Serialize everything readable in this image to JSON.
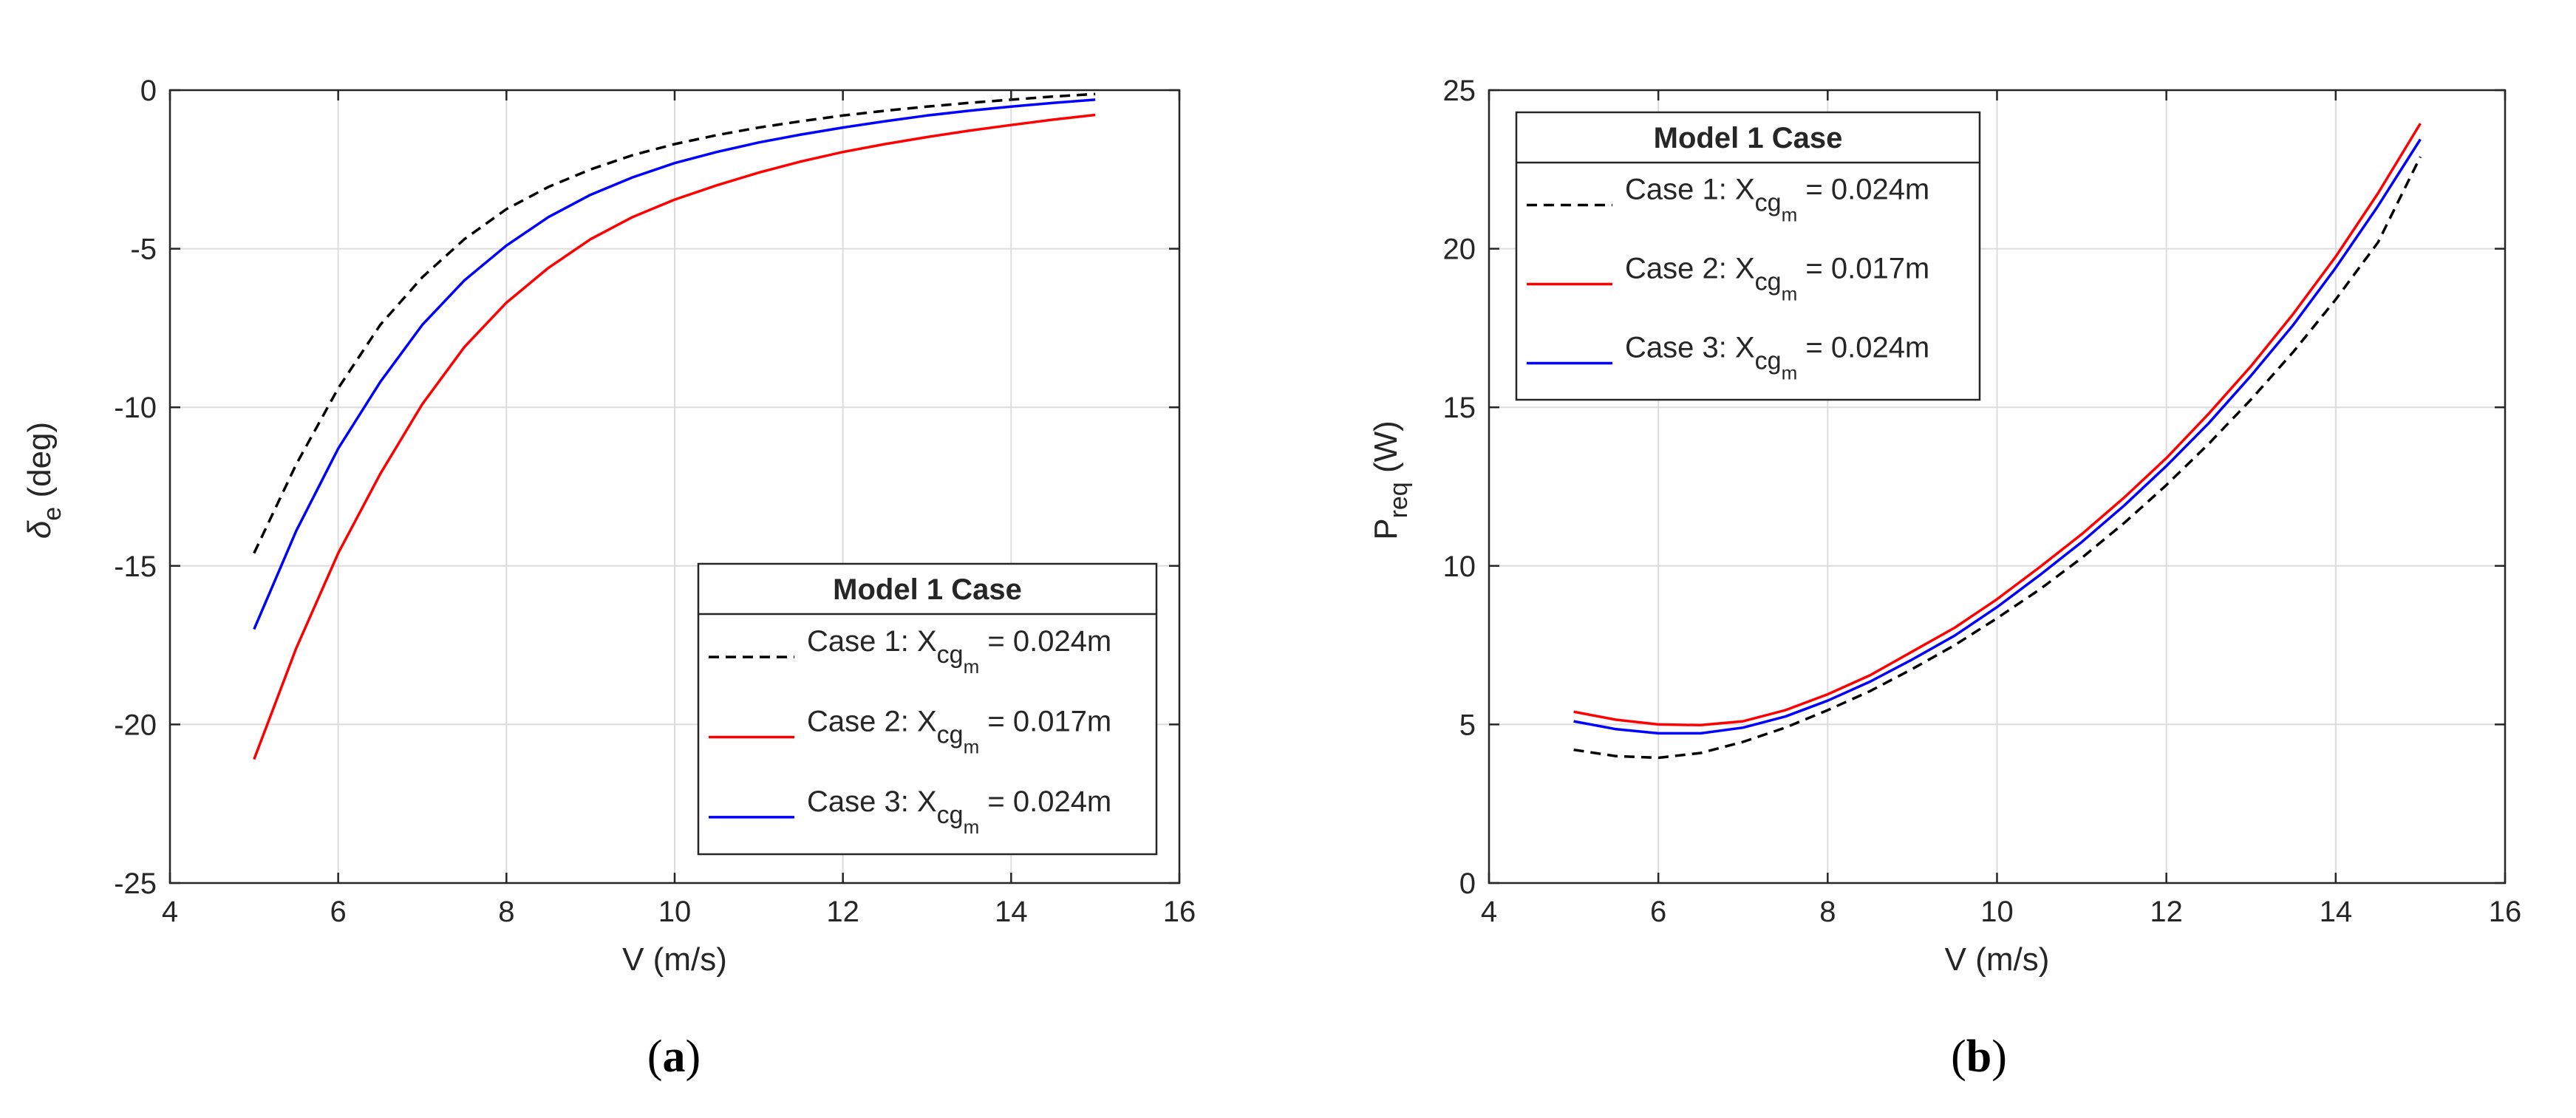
{
  "chart_data": [
    {
      "type": "line",
      "panel_label": "a",
      "xlabel": "V (m/s)",
      "ylabel": {
        "symbol": "δ",
        "subscript": "e",
        "unit": "(deg)"
      },
      "xlim": [
        4,
        16
      ],
      "ylim": [
        -25,
        0
      ],
      "xticks": [
        4,
        6,
        8,
        10,
        12,
        14,
        16
      ],
      "yticks": [
        0,
        -5,
        -10,
        -15,
        -20,
        -25
      ],
      "grid": true,
      "legend": {
        "title": "Model 1 Case",
        "placement": "bottom-right",
        "entries": [
          {
            "prefix": "Case 1: X",
            "sub": "cg",
            "subsub": "m",
            "suffix": " = 0.024m"
          },
          {
            "prefix": "Case 2: X",
            "sub": "cg",
            "subsub": "m",
            "suffix": " = 0.017m"
          },
          {
            "prefix": "Case 3: X",
            "sub": "cg",
            "subsub": "m",
            "suffix": " = 0.024m"
          }
        ]
      },
      "series": [
        {
          "name": "Case 1",
          "color": "#000000",
          "dash": true,
          "x": [
            5,
            5.5,
            6,
            6.5,
            7,
            7.5,
            8,
            8.5,
            9,
            9.5,
            10,
            10.5,
            11,
            11.5,
            12,
            12.5,
            13,
            13.5,
            14,
            14.5,
            15
          ],
          "y": [
            -14.6,
            -11.8,
            -9.4,
            -7.4,
            -5.9,
            -4.7,
            -3.75,
            -3.05,
            -2.5,
            -2.05,
            -1.7,
            -1.42,
            -1.18,
            -0.98,
            -0.8,
            -0.65,
            -0.52,
            -0.4,
            -0.3,
            -0.2,
            -0.12
          ]
        },
        {
          "name": "Case 2",
          "color": "#ff0000",
          "dash": false,
          "x": [
            5,
            5.5,
            6,
            6.5,
            7,
            7.5,
            8,
            8.5,
            9,
            9.5,
            10,
            10.5,
            11,
            11.5,
            12,
            12.5,
            13,
            13.5,
            14,
            14.5,
            15
          ],
          "y": [
            -21.1,
            -17.6,
            -14.6,
            -12.1,
            -9.9,
            -8.1,
            -6.7,
            -5.6,
            -4.7,
            -4.0,
            -3.45,
            -3.0,
            -2.6,
            -2.25,
            -1.95,
            -1.7,
            -1.48,
            -1.28,
            -1.1,
            -0.93,
            -0.78
          ]
        },
        {
          "name": "Case 3",
          "color": "#0000ff",
          "dash": false,
          "x": [
            5,
            5.5,
            6,
            6.5,
            7,
            7.5,
            8,
            8.5,
            9,
            9.5,
            10,
            10.5,
            11,
            11.5,
            12,
            12.5,
            13,
            13.5,
            14,
            14.5,
            15
          ],
          "y": [
            -17.0,
            -13.9,
            -11.3,
            -9.2,
            -7.4,
            -6.0,
            -4.9,
            -4.0,
            -3.3,
            -2.75,
            -2.3,
            -1.95,
            -1.65,
            -1.4,
            -1.18,
            -0.98,
            -0.8,
            -0.65,
            -0.52,
            -0.4,
            -0.3
          ]
        }
      ]
    },
    {
      "type": "line",
      "panel_label": "b",
      "xlabel": "V (m/s)",
      "ylabel": {
        "symbol": "P",
        "subscript": "req",
        "unit": "(W)"
      },
      "xlim": [
        4,
        16
      ],
      "ylim": [
        0,
        25
      ],
      "xticks": [
        4,
        6,
        8,
        10,
        12,
        14,
        16
      ],
      "yticks": [
        0,
        5,
        10,
        15,
        20,
        25
      ],
      "grid": true,
      "legend": {
        "title": "Model 1 Case",
        "placement": "top-left",
        "entries": [
          {
            "prefix": "Case 1: X",
            "sub": "cg",
            "subsub": "m",
            "suffix": " = 0.024m"
          },
          {
            "prefix": "Case 2: X",
            "sub": "cg",
            "subsub": "m",
            "suffix": " = 0.017m"
          },
          {
            "prefix": "Case 3: X",
            "sub": "cg",
            "subsub": "m",
            "suffix": " = 0.024m"
          }
        ]
      },
      "series": [
        {
          "name": "Case 1",
          "color": "#000000",
          "dash": true,
          "x": [
            5,
            5.5,
            6,
            6.5,
            7,
            7.5,
            8,
            8.5,
            9,
            9.5,
            10,
            10.5,
            11,
            11.5,
            12,
            12.5,
            13,
            13.5,
            14,
            14.5,
            15
          ],
          "y": [
            4.2,
            4.0,
            3.95,
            4.1,
            4.45,
            4.9,
            5.45,
            6.05,
            6.75,
            7.5,
            8.35,
            9.25,
            10.25,
            11.35,
            12.55,
            13.85,
            15.25,
            16.75,
            18.4,
            20.2,
            22.9
          ]
        },
        {
          "name": "Case 2",
          "color": "#ff0000",
          "dash": false,
          "x": [
            5,
            5.5,
            6,
            6.5,
            7,
            7.5,
            8,
            8.5,
            9,
            9.5,
            10,
            10.5,
            11,
            11.5,
            12,
            12.5,
            13,
            13.5,
            14,
            14.5,
            15
          ],
          "y": [
            5.4,
            5.15,
            5.0,
            4.98,
            5.1,
            5.45,
            5.95,
            6.55,
            7.3,
            8.05,
            8.95,
            9.95,
            11.0,
            12.15,
            13.4,
            14.8,
            16.3,
            17.95,
            19.75,
            21.75,
            23.95
          ]
        },
        {
          "name": "Case 3",
          "color": "#0000ff",
          "dash": false,
          "x": [
            5,
            5.5,
            6,
            6.5,
            7,
            7.5,
            8,
            8.5,
            9,
            9.5,
            10,
            10.5,
            11,
            11.5,
            12,
            12.5,
            13,
            13.5,
            14,
            14.5,
            15
          ],
          "y": [
            5.1,
            4.85,
            4.72,
            4.72,
            4.9,
            5.25,
            5.75,
            6.35,
            7.05,
            7.8,
            8.7,
            9.7,
            10.75,
            11.9,
            13.15,
            14.5,
            16.0,
            17.6,
            19.4,
            21.35,
            23.45
          ]
        }
      ]
    }
  ]
}
